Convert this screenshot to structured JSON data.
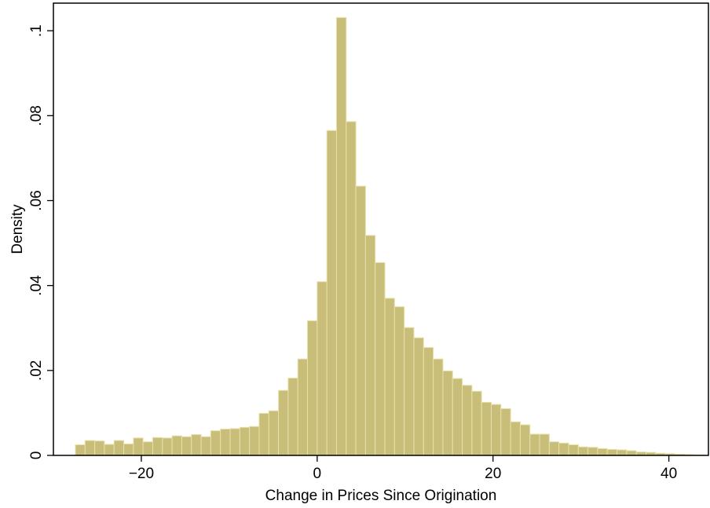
{
  "chart_data": {
    "type": "bar",
    "subtype": "histogram",
    "title": "",
    "xlabel": "Change in Prices Since Origination",
    "ylabel": "Density",
    "xlim": [
      -30,
      44.5
    ],
    "ylim": [
      0,
      0.1065
    ],
    "xticks": [
      -20,
      0,
      20,
      40
    ],
    "xtick_labels": [
      "−20",
      "0",
      "20",
      "40"
    ],
    "yticks": [
      0,
      0.02,
      0.04,
      0.06,
      0.08,
      0.1
    ],
    "ytick_labels": [
      "0",
      ".02",
      ".04",
      ".06",
      ".08",
      ".1"
    ],
    "grid": false,
    "legend": "none",
    "bar_color": "#C8BE7A",
    "bar_edge_color": "#E8E0A8",
    "bin_width": 1.1,
    "bins_start": [
      -27.5,
      -26.4,
      -25.3,
      -24.2,
      -23.1,
      -22.0,
      -20.9,
      -19.8,
      -18.7,
      -17.6,
      -16.5,
      -15.4,
      -14.3,
      -13.2,
      -12.1,
      -11.0,
      -9.9,
      -8.8,
      -7.7,
      -6.6,
      -5.5,
      -4.4,
      -3.3,
      -2.2,
      -1.1,
      0.0,
      1.1,
      2.2,
      3.3,
      4.4,
      5.5,
      6.6,
      7.7,
      8.8,
      9.9,
      11.0,
      12.1,
      13.2,
      14.3,
      15.4,
      16.5,
      17.6,
      18.7,
      19.8,
      20.9,
      22.0,
      23.1,
      24.2,
      25.3,
      26.4,
      27.5,
      28.6,
      29.7,
      30.8,
      31.9,
      33.0,
      34.1,
      35.2,
      36.3,
      37.4,
      38.5,
      39.6,
      40.7,
      41.8,
      42.9
    ],
    "values": [
      0.0025,
      0.0035,
      0.0034,
      0.0026,
      0.0035,
      0.0027,
      0.0041,
      0.0032,
      0.0042,
      0.0041,
      0.0046,
      0.0044,
      0.0049,
      0.0044,
      0.0058,
      0.0062,
      0.0063,
      0.0066,
      0.0068,
      0.0099,
      0.0105,
      0.0153,
      0.0182,
      0.0227,
      0.0317,
      0.0409,
      0.0765,
      0.1031,
      0.0786,
      0.0634,
      0.0518,
      0.0454,
      0.037,
      0.035,
      0.0301,
      0.0277,
      0.0254,
      0.0227,
      0.0199,
      0.0181,
      0.0165,
      0.0151,
      0.0125,
      0.012,
      0.011,
      0.0079,
      0.0072,
      0.005,
      0.005,
      0.0032,
      0.0029,
      0.0025,
      0.002,
      0.0019,
      0.0016,
      0.0014,
      0.0013,
      0.0011,
      0.0008,
      0.0007,
      0.0005,
      0.0004,
      0.0003,
      0.0002,
      0.0001
    ]
  }
}
